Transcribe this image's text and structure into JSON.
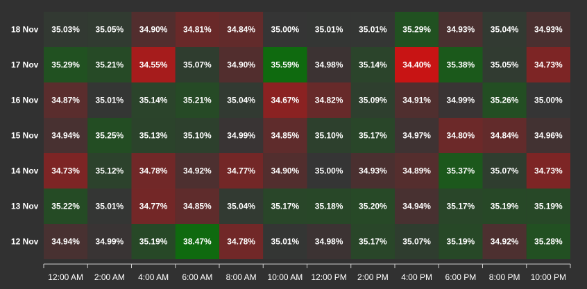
{
  "chart_data": {
    "type": "heatmap",
    "x_categories": [
      "12:00 AM",
      "2:00 AM",
      "4:00 AM",
      "6:00 AM",
      "8:00 AM",
      "10:00 AM",
      "12:00 PM",
      "2:00 PM",
      "4:00 PM",
      "6:00 PM",
      "8:00 PM",
      "10:00 PM"
    ],
    "y_categories": [
      "18 Nov",
      "17 Nov",
      "16 Nov",
      "15 Nov",
      "14 Nov",
      "13 Nov",
      "12 Nov"
    ],
    "values": [
      [
        35.03,
        35.05,
        34.9,
        34.81,
        34.84,
        35.0,
        35.01,
        35.01,
        35.29,
        34.93,
        35.04,
        34.93
      ],
      [
        35.29,
        35.21,
        34.55,
        35.07,
        34.9,
        35.59,
        34.98,
        35.14,
        34.4,
        35.38,
        35.05,
        34.73
      ],
      [
        34.87,
        35.01,
        35.14,
        35.21,
        35.04,
        34.67,
        34.82,
        35.09,
        34.91,
        34.99,
        35.26,
        35.0
      ],
      [
        34.94,
        35.25,
        35.13,
        35.1,
        34.99,
        34.85,
        35.1,
        35.17,
        34.97,
        34.8,
        34.84,
        34.96
      ],
      [
        34.73,
        35.12,
        34.78,
        34.92,
        34.77,
        34.9,
        35.0,
        34.93,
        34.89,
        35.37,
        35.07,
        34.73
      ],
      [
        35.22,
        35.01,
        34.77,
        34.85,
        35.04,
        35.17,
        35.18,
        35.2,
        34.94,
        35.17,
        35.19,
        35.19
      ],
      [
        34.94,
        34.99,
        35.19,
        38.47,
        34.78,
        35.01,
        34.98,
        35.17,
        35.07,
        35.19,
        34.92,
        35.28
      ]
    ],
    "value_suffix": "%",
    "colors": {
      "background": "#313131",
      "neutral": "#353535",
      "positive": "#0f6a0f",
      "negative": "#c81414",
      "text": "#ffffff",
      "axis": "#cfcfcf"
    }
  }
}
